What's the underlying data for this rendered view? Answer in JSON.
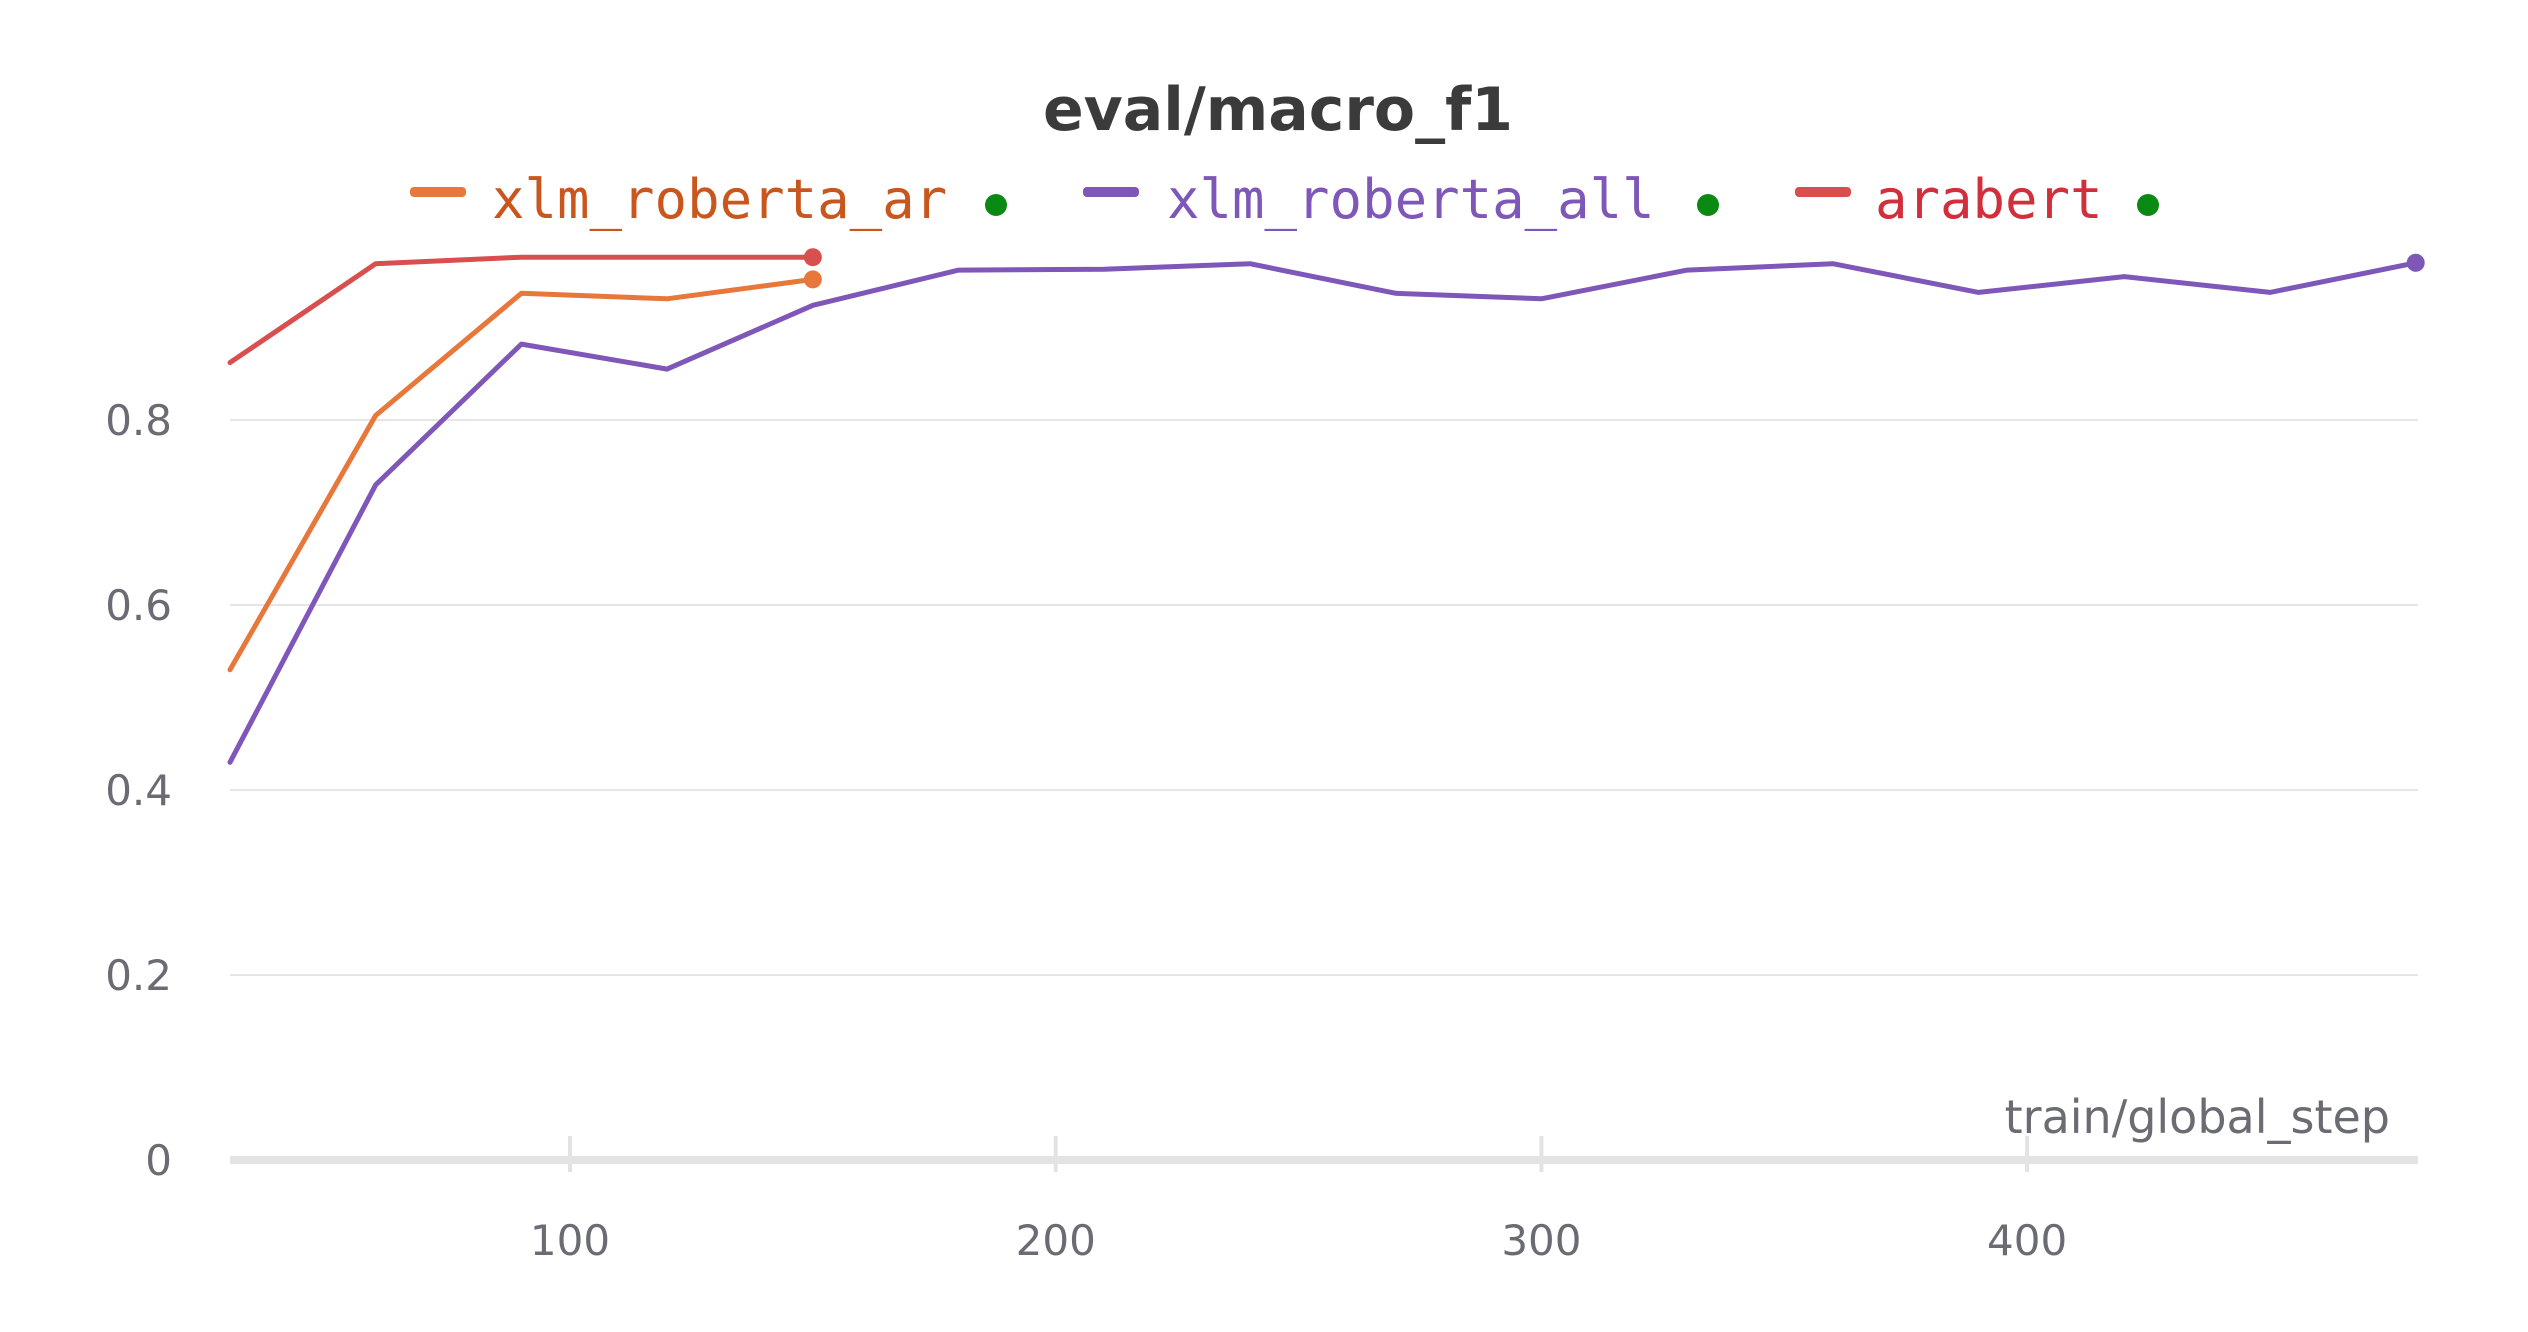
{
  "chart_data": {
    "type": "line",
    "title": "eval/macro_f1",
    "xlabel": "train/global_step",
    "ylabel": "",
    "xlim": [
      30,
      480
    ],
    "ylim": [
      0,
      1
    ],
    "x_ticks": [
      100,
      200,
      300,
      400
    ],
    "y_ticks": [
      0,
      0.2,
      0.4,
      0.6,
      0.8
    ],
    "grid": true,
    "legend_position": "top",
    "series": [
      {
        "name": "xlm_roberta_ar",
        "color": "#e8773c",
        "text_color": "#c9561d",
        "x": [
          30,
          60,
          90,
          120,
          150
        ],
        "y": [
          0.53,
          0.805,
          0.937,
          0.931,
          0.952
        ]
      },
      {
        "name": "xlm_roberta_all",
        "color": "#7e57b8",
        "text_color": "#7e57b8",
        "x": [
          30,
          60,
          90,
          120,
          150,
          180,
          210,
          240,
          270,
          300,
          330,
          360,
          390,
          420,
          450,
          480
        ],
        "y": [
          0.43,
          0.73,
          0.882,
          0.855,
          0.924,
          0.962,
          0.963,
          0.969,
          0.937,
          0.931,
          0.962,
          0.969,
          0.938,
          0.955,
          0.938,
          0.97
        ]
      },
      {
        "name": "arabert",
        "color": "#d94f4f",
        "text_color": "#d12f3b",
        "x": [
          30,
          60,
          90,
          120,
          150
        ],
        "y": [
          0.862,
          0.969,
          0.976,
          0.976,
          0.976
        ]
      }
    ],
    "legend_dot_color": "#0a8a12"
  }
}
